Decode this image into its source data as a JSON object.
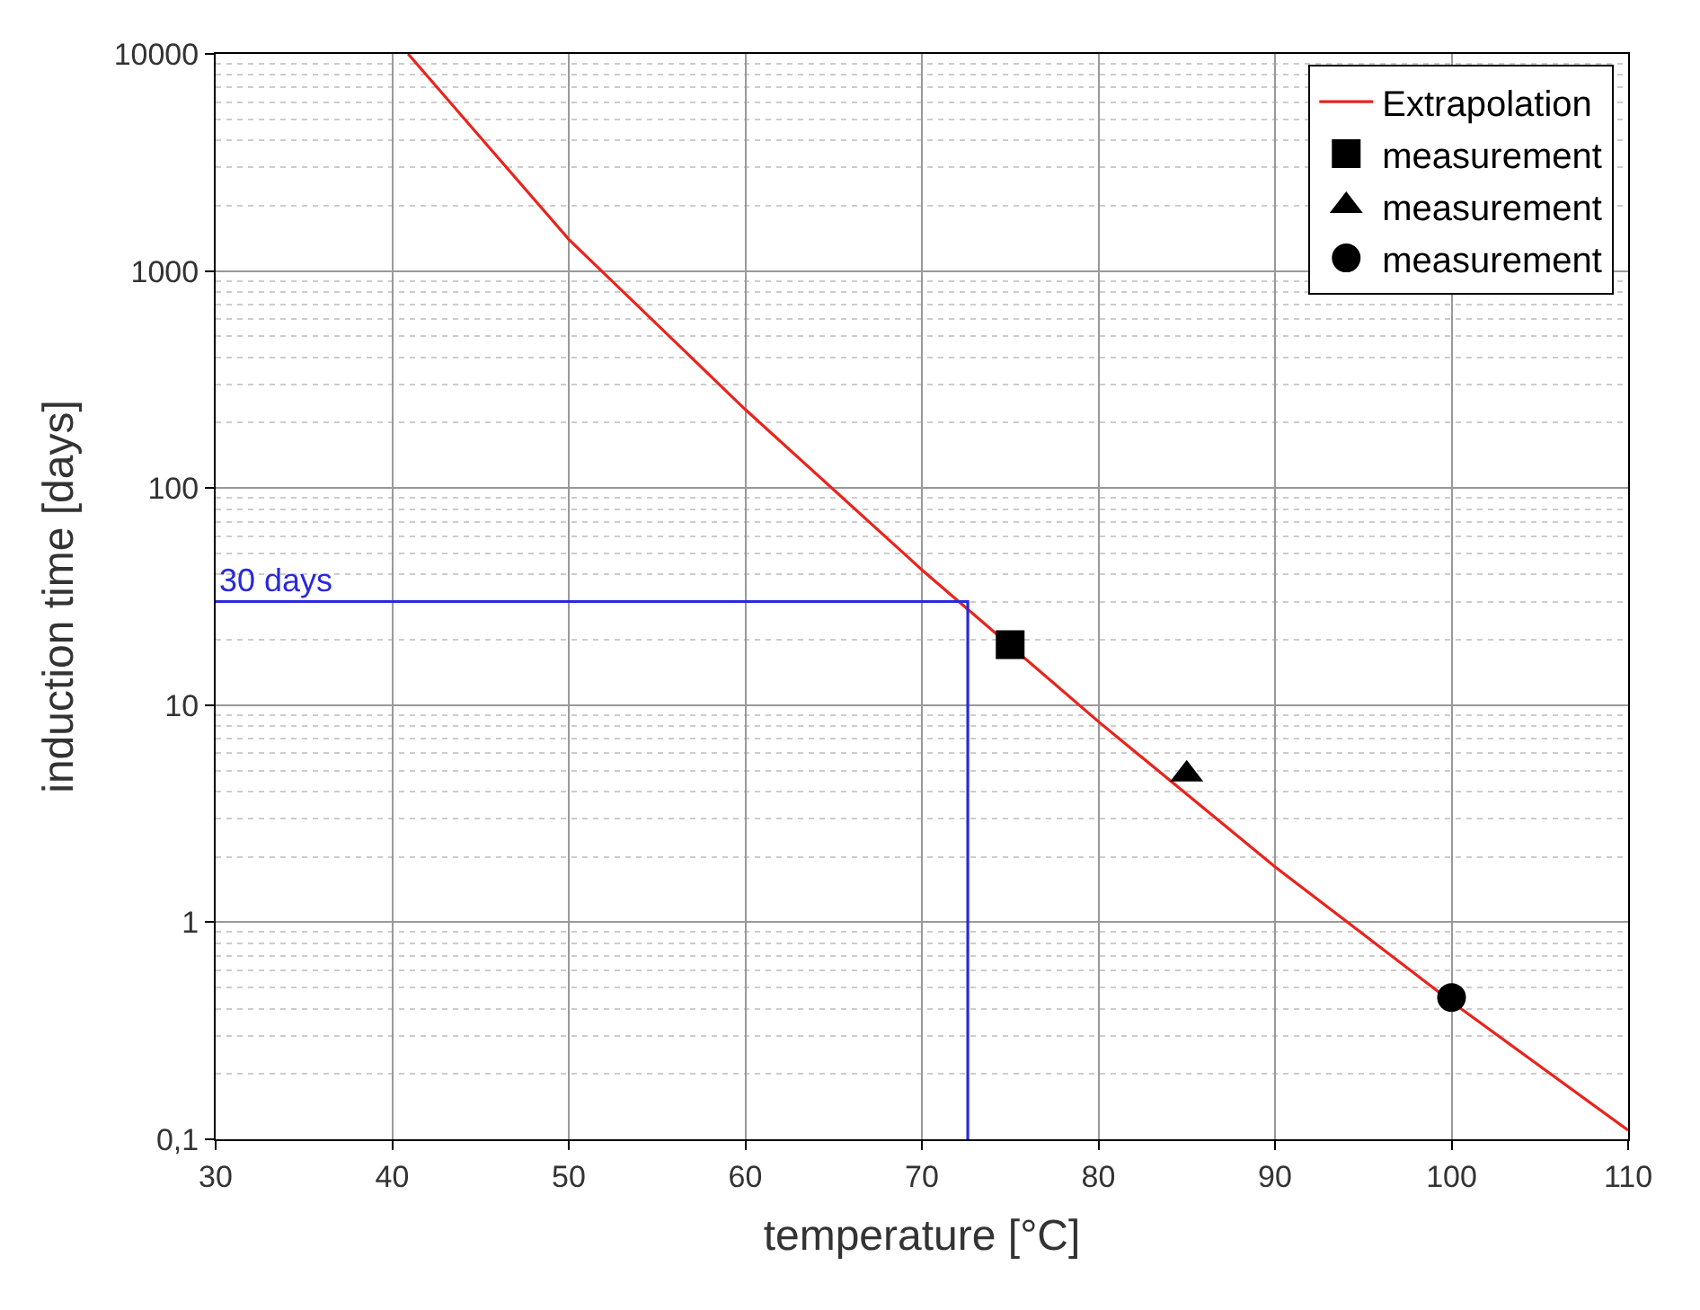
{
  "chart_data": {
    "type": "line",
    "xlabel": "temperature [°C]",
    "ylabel": "induction time [days]",
    "xlim": [
      30,
      110
    ],
    "xticks": [
      30,
      40,
      50,
      60,
      70,
      80,
      90,
      100,
      110
    ],
    "ylim": [
      0.1,
      10000
    ],
    "yticks": [
      {
        "value": 0.1,
        "label": "0,1"
      },
      1,
      10,
      100,
      1000,
      10000
    ],
    "log": "y",
    "grid": true,
    "legend": "top right",
    "series": [
      {
        "name": "Extrapolation",
        "color": "#e8241c",
        "marker": "none",
        "x": [
          40.9,
          50,
          60,
          70,
          80,
          90,
          100,
          110
        ],
        "values": [
          10000,
          1400,
          230,
          42,
          8.4,
          1.8,
          0.43,
          0.11
        ]
      },
      {
        "name": "measurement",
        "type": "scatter",
        "color": "#000000",
        "marker": "square",
        "x": [
          75
        ],
        "values": [
          19
        ]
      },
      {
        "name": "measurement",
        "type": "scatter",
        "color": "#000000",
        "marker": "triangle",
        "x": [
          85
        ],
        "values": [
          4.8
        ]
      },
      {
        "name": "measurement",
        "type": "scatter",
        "color": "#000000",
        "marker": "circle",
        "x": [
          100
        ],
        "values": [
          0.45
        ]
      },
      {
        "color": "#2a2ad8",
        "marker": "none",
        "x": [
          30,
          72.6,
          72.6
        ],
        "values": [
          30,
          30,
          0.1
        ]
      }
    ],
    "annotations": [
      {
        "text": "30 days",
        "x": 30,
        "y": 30
      }
    ]
  }
}
